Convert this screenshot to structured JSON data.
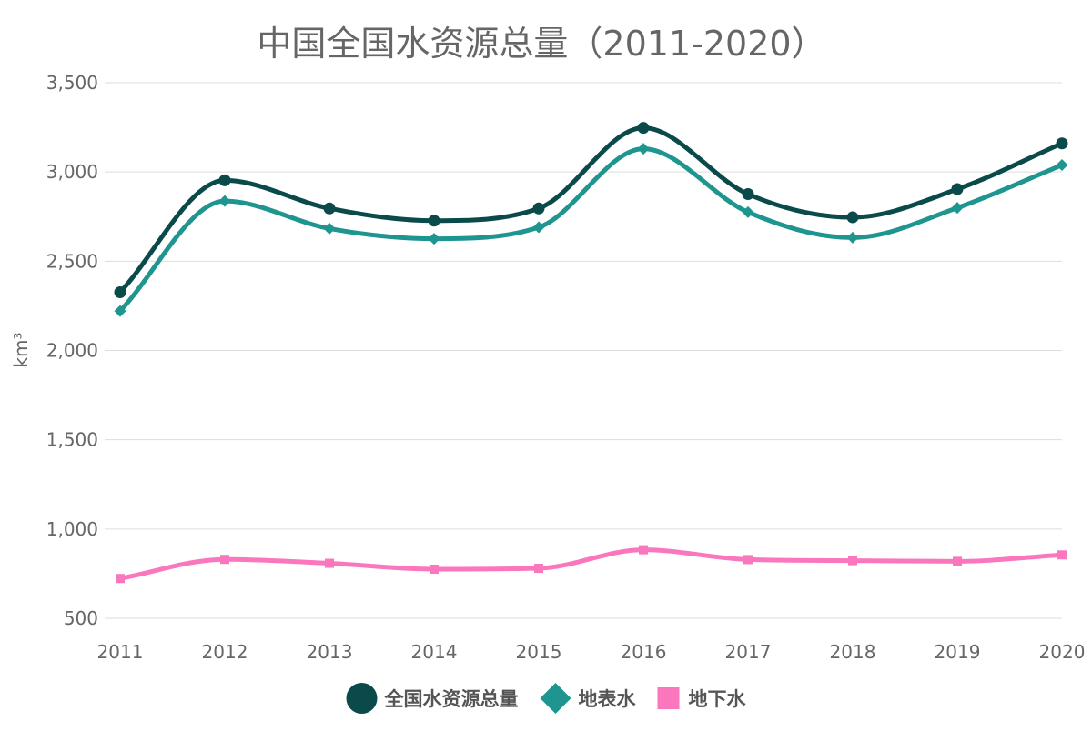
{
  "chart_data": {
    "type": "line",
    "title": "中国全国水资源总量（2011-2020）",
    "xlabel": "",
    "ylabel": "km³",
    "categories": [
      "2011",
      "2012",
      "2013",
      "2014",
      "2015",
      "2016",
      "2017",
      "2018",
      "2019",
      "2020"
    ],
    "series": [
      {
        "name": "全国水资源总量",
        "color": "#0b4a4a",
        "marker": "circle",
        "values": [
          2326,
          2953,
          2796,
          2727,
          2796,
          3247,
          2876,
          2746,
          2904,
          3160
        ]
      },
      {
        "name": "地表水",
        "color": "#1e958f",
        "marker": "diamond",
        "values": [
          2221,
          2837,
          2683,
          2626,
          2690,
          3130,
          2775,
          2632,
          2799,
          3039
        ]
      },
      {
        "name": "地下水",
        "color": "#fa76bd",
        "marker": "square",
        "values": [
          723,
          830,
          808,
          775,
          780,
          884,
          829,
          823,
          819,
          855
        ]
      }
    ],
    "ylim": [
      500,
      3500
    ],
    "yticks": [
      500,
      1000,
      1500,
      2000,
      2500,
      3000,
      3500
    ],
    "ytick_labels": [
      "500",
      "1,000",
      "1,500",
      "2,000",
      "2,500",
      "3,000",
      "3,500"
    ],
    "grid": true,
    "legend_position": "bottom-center"
  }
}
